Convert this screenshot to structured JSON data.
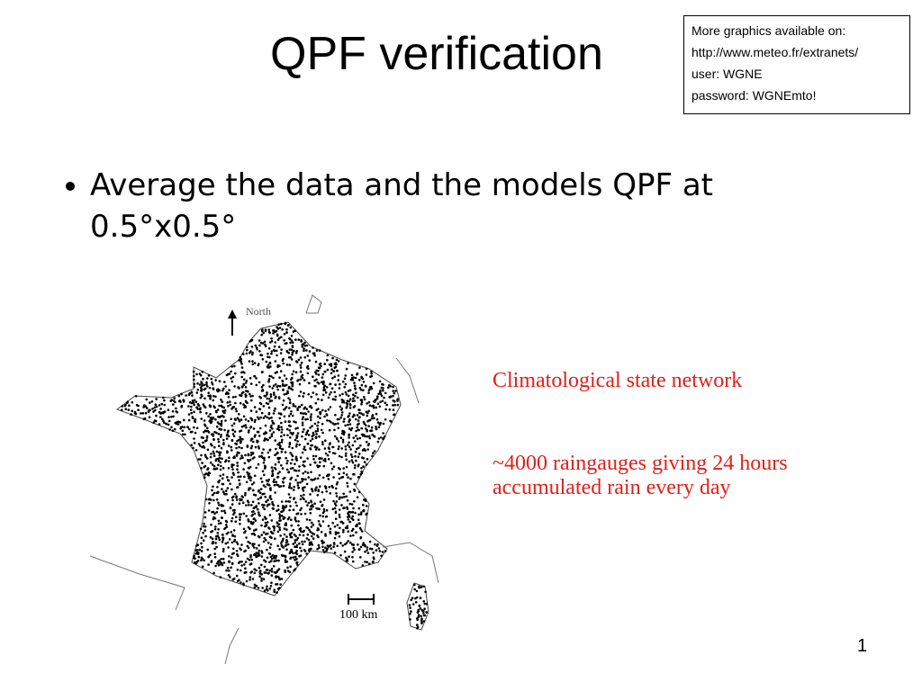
{
  "title": "QPF verification",
  "info_box": {
    "lines": [
      "More graphics available on:",
      "http://www.meteo.fr/extranets/",
      "user: WGNE",
      "password: WGNEmto!"
    ]
  },
  "bullets": [
    "Average the data and the models QPF at 0.5°x0.5°"
  ],
  "map": {
    "north_label": "North",
    "scale_label": "100 km"
  },
  "notes": [
    "Climatological state network",
    "~4000 raingauges giving 24 hours accumulated rain every day"
  ],
  "page_number": "1"
}
